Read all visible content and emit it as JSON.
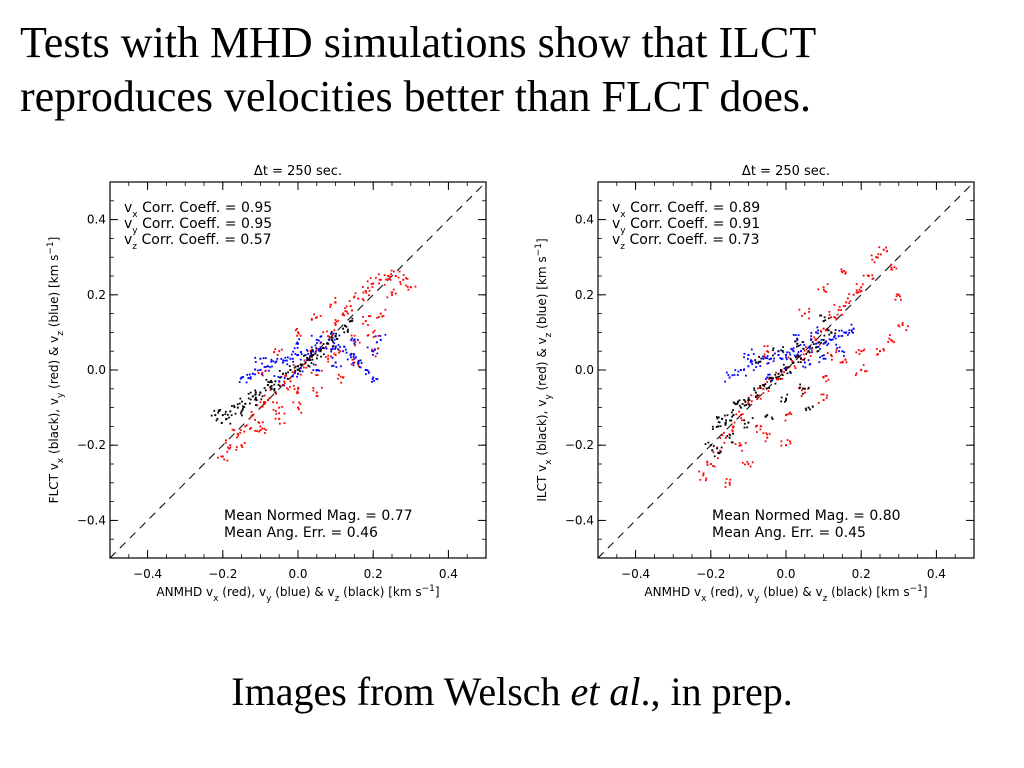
{
  "slide": {
    "title_line1": "Tests with MHD simulations show that ILCT",
    "title_line2": "reproduces velocities better than FLCT does.",
    "caption_prefix": "Images from Welsch ",
    "caption_italic": "et al",
    "caption_suffix": "., in prep."
  },
  "colors": {
    "vx": "#ff0000",
    "vy": "#0000ff",
    "vz": "#000000",
    "axis": "#000000",
    "diagonal": "#000000"
  },
  "chart_data": [
    {
      "type": "scatter",
      "title": "Δt =  250 sec.",
      "xlabel": "ANMHD vx (red), vy (blue) & vz (black) [km s-1]",
      "ylabel": "FLCT vx (black), vy (red) & vz (blue) [km s-1]",
      "xlim": [
        -0.5,
        0.5
      ],
      "ylim": [
        -0.5,
        0.5
      ],
      "xticks": [
        "−0.4",
        "−0.2",
        "0.0",
        "0.2",
        "0.4"
      ],
      "xtick_values": [
        -0.4,
        -0.2,
        0.0,
        0.2,
        0.4
      ],
      "yticks": [
        "0.4",
        "0.2",
        "0.0",
        "−0.2",
        "−0.4"
      ],
      "ytick_values": [
        0.4,
        0.2,
        0.0,
        -0.2,
        -0.4
      ],
      "annotations_top": [
        "vx Corr. Coeff. = 0.95",
        "vy Corr. Coeff. = 0.95",
        "vz Corr. Coeff. = 0.57"
      ],
      "annotations_bottom": [
        "Mean Normed Mag. = 0.77",
        "Mean Ang. Err. = 0.46"
      ],
      "series": [
        {
          "color": "#ff0000",
          "points": [
            [
              -0.2,
              -0.23
            ],
            [
              -0.18,
              -0.2
            ],
            [
              -0.16,
              -0.17
            ],
            [
              -0.14,
              -0.15
            ],
            [
              -0.12,
              -0.12
            ],
            [
              -0.1,
              -0.1
            ],
            [
              -0.08,
              -0.08
            ],
            [
              -0.06,
              -0.06
            ],
            [
              -0.04,
              -0.04
            ],
            [
              -0.02,
              -0.03
            ],
            [
              0.0,
              0.0
            ],
            [
              0.02,
              0.02
            ],
            [
              0.04,
              0.04
            ],
            [
              0.06,
              0.06
            ],
            [
              0.08,
              0.09
            ],
            [
              0.1,
              0.12
            ],
            [
              0.12,
              0.15
            ],
            [
              0.14,
              0.17
            ],
            [
              0.16,
              0.19
            ],
            [
              0.18,
              0.21
            ],
            [
              0.2,
              0.23
            ],
            [
              0.22,
              0.24
            ],
            [
              0.24,
              0.25
            ],
            [
              0.26,
              0.25
            ],
            [
              0.28,
              0.24
            ],
            [
              0.3,
              0.22
            ],
            [
              -0.15,
              -0.2
            ],
            [
              -0.1,
              -0.15
            ],
            [
              -0.05,
              -0.1
            ],
            [
              0.0,
              -0.05
            ],
            [
              0.05,
              0.0
            ],
            [
              0.1,
              0.04
            ],
            [
              0.15,
              0.08
            ],
            [
              0.2,
              0.1
            ],
            [
              0.1,
              0.18
            ],
            [
              0.05,
              0.14
            ],
            [
              0.0,
              0.1
            ],
            [
              -0.05,
              0.05
            ],
            [
              -0.1,
              0.0
            ],
            [
              0.2,
              0.05
            ],
            [
              0.15,
              0.02
            ],
            [
              0.12,
              -0.02
            ],
            [
              0.05,
              -0.06
            ],
            [
              0.0,
              -0.1
            ],
            [
              -0.05,
              -0.13
            ],
            [
              -0.1,
              -0.16
            ],
            [
              0.25,
              0.2
            ],
            [
              0.22,
              0.15
            ],
            [
              0.18,
              0.13
            ],
            [
              0.08,
              0.03
            ]
          ]
        },
        {
          "color": "#0000ff",
          "points": [
            [
              -0.15,
              -0.02
            ],
            [
              -0.12,
              -0.01
            ],
            [
              -0.1,
              0.0
            ],
            [
              -0.08,
              0.01
            ],
            [
              -0.06,
              0.02
            ],
            [
              -0.04,
              0.02
            ],
            [
              -0.02,
              0.03
            ],
            [
              0.0,
              0.04
            ],
            [
              0.02,
              0.04
            ],
            [
              0.04,
              0.05
            ],
            [
              0.06,
              0.06
            ],
            [
              0.08,
              0.07
            ],
            [
              0.1,
              0.06
            ],
            [
              0.12,
              0.05
            ],
            [
              0.14,
              0.04
            ],
            [
              0.16,
              0.02
            ],
            [
              0.18,
              0.0
            ],
            [
              0.2,
              -0.02
            ],
            [
              -0.05,
              -0.03
            ],
            [
              0.0,
              -0.01
            ],
            [
              0.05,
              0.0
            ],
            [
              0.1,
              0.02
            ],
            [
              0.15,
              0.03
            ],
            [
              0.2,
              0.05
            ],
            [
              0.22,
              0.08
            ],
            [
              0.0,
              0.07
            ],
            [
              -0.1,
              0.03
            ],
            [
              0.05,
              0.08
            ],
            [
              0.1,
              0.09
            ],
            [
              0.15,
              0.07
            ]
          ]
        },
        {
          "color": "#000000",
          "points": [
            [
              -0.22,
              -0.12
            ],
            [
              -0.2,
              -0.12
            ],
            [
              -0.18,
              -0.11
            ],
            [
              -0.16,
              -0.1
            ],
            [
              -0.14,
              -0.09
            ],
            [
              -0.12,
              -0.07
            ],
            [
              -0.1,
              -0.06
            ],
            [
              -0.08,
              -0.04
            ],
            [
              -0.06,
              -0.03
            ],
            [
              -0.04,
              -0.01
            ],
            [
              -0.02,
              0.0
            ],
            [
              0.0,
              0.01
            ],
            [
              0.02,
              0.02
            ],
            [
              0.04,
              0.04
            ],
            [
              0.06,
              0.05
            ],
            [
              0.08,
              0.07
            ],
            [
              0.1,
              0.09
            ],
            [
              0.12,
              0.11
            ],
            [
              0.14,
              0.13
            ],
            [
              -0.19,
              -0.13
            ],
            [
              -0.15,
              -0.11
            ],
            [
              -0.11,
              -0.08
            ],
            [
              -0.07,
              -0.05
            ],
            [
              0.03,
              0.03
            ],
            [
              0.09,
              0.08
            ]
          ]
        }
      ]
    },
    {
      "type": "scatter",
      "title": "Δt =  250 sec.",
      "xlabel": "ANMHD vx (red), vy (blue) & vz (black) [km s-1]",
      "ylabel": "ILCT vx (black), vy (red) & vz (blue) [km s-1]",
      "xlim": [
        -0.5,
        0.5
      ],
      "ylim": [
        -0.5,
        0.5
      ],
      "xticks": [
        "−0.4",
        "−0.2",
        "0.0",
        "0.2",
        "0.4"
      ],
      "xtick_values": [
        -0.4,
        -0.2,
        0.0,
        0.2,
        0.4
      ],
      "yticks": [
        "0.4",
        "0.2",
        "0.0",
        "−0.2",
        "−0.4"
      ],
      "ytick_values": [
        0.4,
        0.2,
        0.0,
        -0.2,
        -0.4
      ],
      "annotations_top": [
        "vx Corr. Coeff. = 0.89",
        "vy Corr. Coeff. = 0.91",
        "vz Corr. Coeff. = 0.73"
      ],
      "annotations_bottom": [
        "Mean Normed Mag. = 0.80",
        "Mean Ang. Err. = 0.45"
      ],
      "series": [
        {
          "color": "#ff0000",
          "points": [
            [
              -0.22,
              -0.28
            ],
            [
              -0.2,
              -0.25
            ],
            [
              -0.18,
              -0.22
            ],
            [
              -0.16,
              -0.18
            ],
            [
              -0.14,
              -0.15
            ],
            [
              -0.12,
              -0.12
            ],
            [
              -0.1,
              -0.09
            ],
            [
              -0.08,
              -0.07
            ],
            [
              -0.06,
              -0.05
            ],
            [
              -0.04,
              -0.03
            ],
            [
              -0.02,
              -0.02
            ],
            [
              0.0,
              0.0
            ],
            [
              0.02,
              0.02
            ],
            [
              0.04,
              0.03
            ],
            [
              0.06,
              0.05
            ],
            [
              0.08,
              0.08
            ],
            [
              0.1,
              0.11
            ],
            [
              0.12,
              0.14
            ],
            [
              0.14,
              0.16
            ],
            [
              0.16,
              0.18
            ],
            [
              0.18,
              0.2
            ],
            [
              0.2,
              0.22
            ],
            [
              0.22,
              0.25
            ],
            [
              0.24,
              0.3
            ],
            [
              0.26,
              0.32
            ],
            [
              0.28,
              0.28
            ],
            [
              0.3,
              0.2
            ],
            [
              0.31,
              0.12
            ],
            [
              0.28,
              0.08
            ],
            [
              0.25,
              0.05
            ],
            [
              -0.15,
              -0.3
            ],
            [
              -0.1,
              -0.25
            ],
            [
              -0.05,
              -0.18
            ],
            [
              0.0,
              -0.12
            ],
            [
              0.05,
              -0.06
            ],
            [
              0.1,
              -0.02
            ],
            [
              0.15,
              0.02
            ],
            [
              0.2,
              0.05
            ],
            [
              0.15,
              0.26
            ],
            [
              0.1,
              0.22
            ],
            [
              0.05,
              0.15
            ],
            [
              -0.05,
              0.05
            ],
            [
              -0.12,
              -0.2
            ],
            [
              -0.08,
              -0.15
            ],
            [
              0.0,
              -0.2
            ],
            [
              0.1,
              -0.08
            ],
            [
              0.2,
              0.0
            ],
            [
              0.12,
              0.04
            ]
          ]
        },
        {
          "color": "#0000ff",
          "points": [
            [
              -0.15,
              -0.02
            ],
            [
              -0.12,
              0.0
            ],
            [
              -0.1,
              0.01
            ],
            [
              -0.08,
              0.02
            ],
            [
              -0.06,
              0.03
            ],
            [
              -0.04,
              0.03
            ],
            [
              -0.02,
              0.04
            ],
            [
              0.0,
              0.04
            ],
            [
              0.02,
              0.05
            ],
            [
              0.04,
              0.05
            ],
            [
              0.06,
              0.06
            ],
            [
              0.08,
              0.07
            ],
            [
              0.1,
              0.07
            ],
            [
              0.12,
              0.08
            ],
            [
              0.14,
              0.09
            ],
            [
              0.16,
              0.1
            ],
            [
              0.18,
              0.11
            ],
            [
              -0.05,
              -0.02
            ],
            [
              0.0,
              0.0
            ],
            [
              0.05,
              0.02
            ],
            [
              0.1,
              0.03
            ],
            [
              0.15,
              0.05
            ],
            [
              0.03,
              0.08
            ],
            [
              0.08,
              0.1
            ],
            [
              -0.1,
              0.04
            ]
          ]
        },
        {
          "color": "#000000",
          "points": [
            [
              -0.18,
              -0.15
            ],
            [
              -0.16,
              -0.14
            ],
            [
              -0.14,
              -0.12
            ],
            [
              -0.12,
              -0.1
            ],
            [
              -0.1,
              -0.08
            ],
            [
              -0.08,
              -0.06
            ],
            [
              -0.06,
              -0.04
            ],
            [
              -0.04,
              -0.03
            ],
            [
              -0.02,
              -0.01
            ],
            [
              0.0,
              0.0
            ],
            [
              0.02,
              0.02
            ],
            [
              0.04,
              0.03
            ],
            [
              0.06,
              0.05
            ],
            [
              0.08,
              0.06
            ],
            [
              0.1,
              0.08
            ],
            [
              0.12,
              0.1
            ],
            [
              -0.2,
              -0.2
            ],
            [
              -0.15,
              -0.18
            ],
            [
              -0.1,
              -0.14
            ],
            [
              -0.05,
              -0.12
            ],
            [
              0.0,
              -0.08
            ],
            [
              0.05,
              -0.05
            ],
            [
              -0.17,
              -0.13
            ],
            [
              -0.13,
              -0.09
            ],
            [
              -0.02,
              0.05
            ],
            [
              0.03,
              0.07
            ],
            [
              -0.08,
              0.02
            ],
            [
              0.1,
              0.13
            ],
            [
              -0.18,
              -0.22
            ],
            [
              0.06,
              -0.1
            ]
          ]
        }
      ]
    }
  ]
}
